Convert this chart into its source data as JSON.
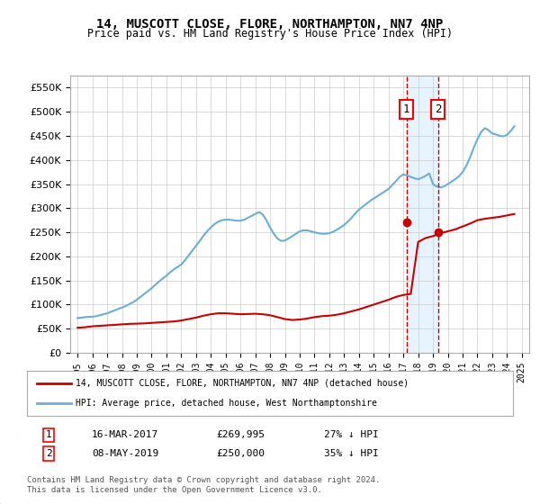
{
  "title": "14, MUSCOTT CLOSE, FLORE, NORTHAMPTON, NN7 4NP",
  "subtitle": "Price paid vs. HM Land Registry's House Price Index (HPI)",
  "legend_line1": "14, MUSCOTT CLOSE, FLORE, NORTHAMPTON, NN7 4NP (detached house)",
  "legend_line2": "HPI: Average price, detached house, West Northamptonshire",
  "footer": "Contains HM Land Registry data © Crown copyright and database right 2024.\nThis data is licensed under the Open Government Licence v3.0.",
  "hpi_color": "#6baed6",
  "price_color": "#cc0000",
  "marker1_date_num": 2017.21,
  "marker2_date_num": 2019.36,
  "marker1_label": "1",
  "marker2_label": "2",
  "transaction1": "16-MAR-2017",
  "transaction1_price": "£269,995",
  "transaction1_pct": "27% ↓ HPI",
  "transaction2": "08-MAY-2019",
  "transaction2_price": "£250,000",
  "transaction2_pct": "35% ↓ HPI",
  "ylim": [
    0,
    575000
  ],
  "xlim": [
    1994.5,
    2025.5
  ],
  "yticks": [
    0,
    50000,
    100000,
    150000,
    200000,
    250000,
    300000,
    350000,
    400000,
    450000,
    500000,
    550000
  ],
  "xticks": [
    1995,
    1996,
    1997,
    1998,
    1999,
    2000,
    2001,
    2002,
    2003,
    2004,
    2005,
    2006,
    2007,
    2008,
    2009,
    2010,
    2011,
    2012,
    2013,
    2014,
    2015,
    2016,
    2017,
    2018,
    2019,
    2020,
    2021,
    2022,
    2023,
    2024,
    2025
  ],
  "hpi_x": [
    1995,
    1995.25,
    1995.5,
    1995.75,
    1996,
    1996.25,
    1996.5,
    1996.75,
    1997,
    1997.25,
    1997.5,
    1997.75,
    1998,
    1998.25,
    1998.5,
    1998.75,
    1999,
    1999.25,
    1999.5,
    1999.75,
    2000,
    2000.25,
    2000.5,
    2000.75,
    2001,
    2001.25,
    2001.5,
    2001.75,
    2002,
    2002.25,
    2002.5,
    2002.75,
    2003,
    2003.25,
    2003.5,
    2003.75,
    2004,
    2004.25,
    2004.5,
    2004.75,
    2005,
    2005.25,
    2005.5,
    2005.75,
    2006,
    2006.25,
    2006.5,
    2006.75,
    2007,
    2007.25,
    2007.5,
    2007.75,
    2008,
    2008.25,
    2008.5,
    2008.75,
    2009,
    2009.25,
    2009.5,
    2009.75,
    2010,
    2010.25,
    2010.5,
    2010.75,
    2011,
    2011.25,
    2011.5,
    2011.75,
    2012,
    2012.25,
    2012.5,
    2012.75,
    2013,
    2013.25,
    2013.5,
    2013.75,
    2014,
    2014.25,
    2014.5,
    2014.75,
    2015,
    2015.25,
    2015.5,
    2015.75,
    2016,
    2016.25,
    2016.5,
    2016.75,
    2017,
    2017.25,
    2017.5,
    2017.75,
    2018,
    2018.25,
    2018.5,
    2018.75,
    2019,
    2019.25,
    2019.5,
    2019.75,
    2020,
    2020.25,
    2020.5,
    2020.75,
    2021,
    2021.25,
    2021.5,
    2021.75,
    2022,
    2022.25,
    2022.5,
    2022.75,
    2023,
    2023.25,
    2023.5,
    2023.75,
    2024,
    2024.25,
    2024.5
  ],
  "hpi_y": [
    72000,
    73000,
    74000,
    74500,
    75000,
    76000,
    78000,
    80000,
    82000,
    85000,
    88000,
    91000,
    94000,
    97000,
    101000,
    105000,
    110000,
    116000,
    122000,
    128000,
    134000,
    141000,
    148000,
    154000,
    160000,
    167000,
    173000,
    178000,
    183000,
    192000,
    202000,
    212000,
    222000,
    232000,
    243000,
    252000,
    260000,
    267000,
    272000,
    275000,
    276000,
    276000,
    275000,
    274000,
    274000,
    276000,
    280000,
    284000,
    288000,
    292000,
    287000,
    275000,
    260000,
    247000,
    237000,
    232000,
    233000,
    237000,
    242000,
    247000,
    252000,
    254000,
    254000,
    252000,
    250000,
    248000,
    247000,
    247000,
    248000,
    251000,
    255000,
    260000,
    265000,
    272000,
    280000,
    289000,
    297000,
    303000,
    309000,
    315000,
    320000,
    325000,
    330000,
    335000,
    340000,
    348000,
    356000,
    365000,
    370000,
    368000,
    365000,
    362000,
    360000,
    363000,
    367000,
    372000,
    350000,
    345000,
    343000,
    345000,
    350000,
    355000,
    360000,
    366000,
    375000,
    388000,
    405000,
    425000,
    443000,
    458000,
    466000,
    462000,
    455000,
    453000,
    450000,
    449000,
    452000,
    460000,
    470000
  ],
  "price_x": [
    1995.0,
    1995.5,
    1996.0,
    1996.5,
    1997.0,
    1997.5,
    1998.0,
    1998.5,
    1999.0,
    1999.5,
    2000.0,
    2000.5,
    2001.0,
    2001.5,
    2002.0,
    2002.5,
    2003.0,
    2003.5,
    2004.0,
    2004.5,
    2005.0,
    2005.5,
    2006.0,
    2006.5,
    2007.0,
    2007.5,
    2008.0,
    2008.5,
    2009.0,
    2009.5,
    2010.0,
    2010.5,
    2011.0,
    2011.5,
    2012.0,
    2012.5,
    2013.0,
    2013.5,
    2014.0,
    2014.5,
    2015.0,
    2015.5,
    2016.0,
    2016.5,
    2017.0,
    2017.5,
    2018.0,
    2018.5,
    2019.0,
    2019.5,
    2020.0,
    2020.5,
    2021.0,
    2021.5,
    2022.0,
    2022.5,
    2023.0,
    2023.5,
    2024.0,
    2024.5
  ],
  "price_y": [
    52000,
    53000,
    55000,
    56000,
    57000,
    58000,
    59000,
    60000,
    60500,
    61000,
    62000,
    63000,
    64000,
    65000,
    67000,
    70000,
    73000,
    77000,
    80000,
    82000,
    82000,
    81000,
    80000,
    80500,
    81000,
    80000,
    78000,
    74000,
    70000,
    68000,
    69000,
    71000,
    74000,
    76000,
    77000,
    79000,
    82000,
    86000,
    90000,
    95000,
    100000,
    105000,
    110000,
    116000,
    120000,
    122000,
    230000,
    238000,
    242000,
    248000,
    252000,
    256000,
    262000,
    268000,
    275000,
    278000,
    280000,
    282000,
    285000,
    288000
  ],
  "background_color": "#ffffff",
  "grid_color": "#cccccc",
  "shaded_region_color": "#e8f4fd"
}
